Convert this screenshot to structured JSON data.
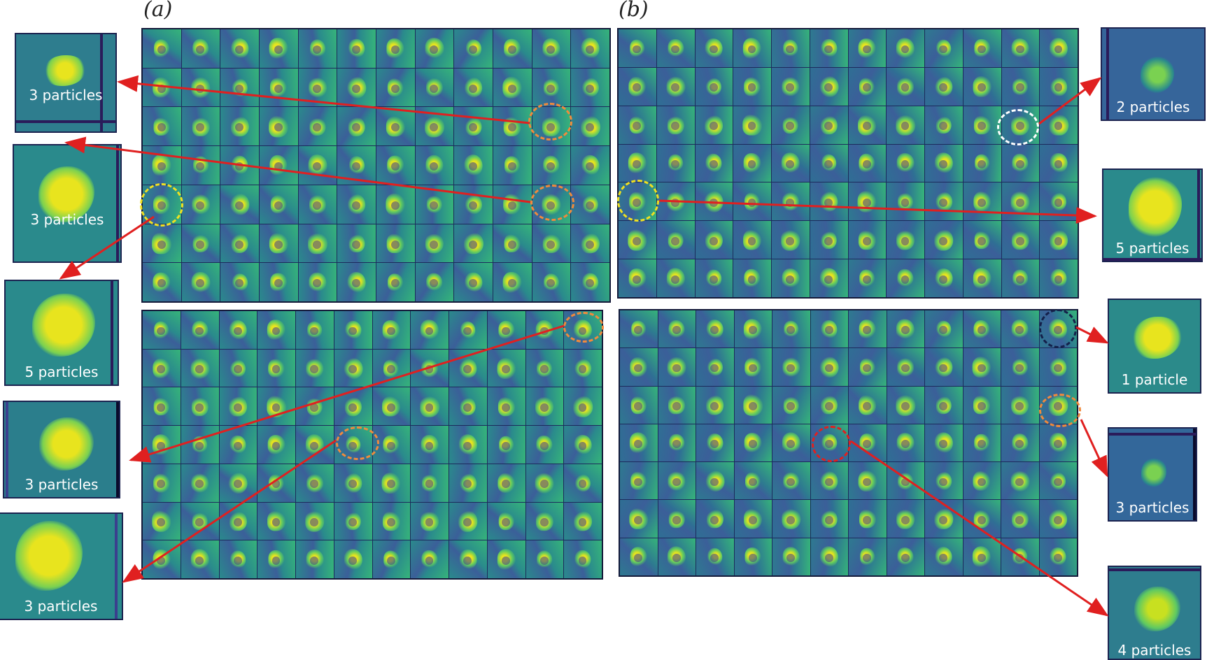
{
  "figure": {
    "panel_labels": {
      "a": "(a)",
      "b": "(b)"
    },
    "colors": {
      "viridis_bg": "#2a8a8c",
      "viridis_dark": "#3b3f8e",
      "viridis_yellow": "#e8e41e",
      "viridis_green": "#5ec962",
      "grid_line": "#1c2a5c",
      "arrow_red": "#e02020",
      "ring_orange": "#f08a3c",
      "ring_yellow": "#f0e020",
      "ring_white": "#ffffff",
      "ring_navy": "#14204a",
      "ring_red": "#e02020"
    },
    "grids": [
      {
        "id": "a-top",
        "panel": "a",
        "rows": 7,
        "cols": 12
      },
      {
        "id": "a-bottom",
        "panel": "a",
        "rows": 7,
        "cols": 12
      },
      {
        "id": "b-top",
        "panel": "b",
        "rows": 7,
        "cols": 12
      },
      {
        "id": "b-bottom",
        "panel": "b",
        "rows": 7,
        "cols": 12
      }
    ],
    "callouts": [
      {
        "id": "a1",
        "caption": "3 particles"
      },
      {
        "id": "a2",
        "caption": "3 particles"
      },
      {
        "id": "a3",
        "caption": "5 particles"
      },
      {
        "id": "a4",
        "caption": "3 particles"
      },
      {
        "id": "a5",
        "caption": "3 particles"
      },
      {
        "id": "b1",
        "caption": "2 particles"
      },
      {
        "id": "b2",
        "caption": "5 particles"
      },
      {
        "id": "b3",
        "caption": "1 particle"
      },
      {
        "id": "b4",
        "caption": "3 particles"
      },
      {
        "id": "b5",
        "caption": "4 particles"
      }
    ]
  }
}
